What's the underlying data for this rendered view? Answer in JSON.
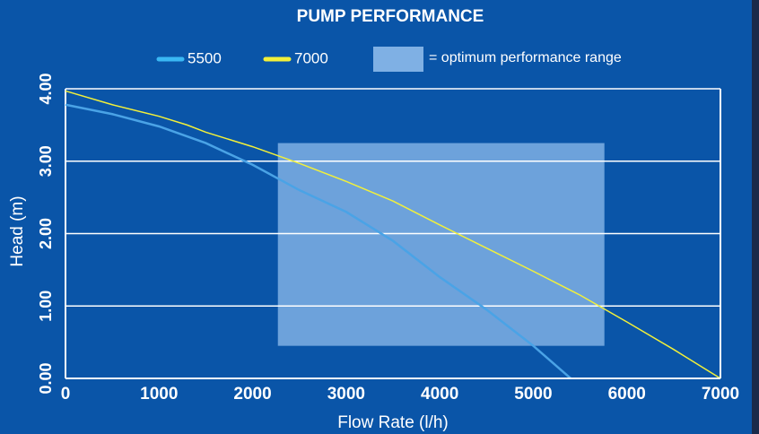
{
  "chart_data": {
    "type": "line",
    "title": "PUMP PERFORMANCE",
    "x_label": "Flow Rate (l/h)",
    "y_label": "Head (m)",
    "xlim": [
      0,
      7000
    ],
    "ylim": [
      0,
      4
    ],
    "xticks": [
      0,
      1000,
      2000,
      3000,
      4000,
      5000,
      6000,
      7000
    ],
    "yticks": [
      {
        "value": 0,
        "label": "0.00"
      },
      {
        "value": 1,
        "label": "1.00"
      },
      {
        "value": 2,
        "label": "2.00"
      },
      {
        "value": 3,
        "label": "3.00"
      },
      {
        "value": 4,
        "label": "4.00"
      }
    ],
    "grid": true,
    "series": [
      {
        "name": "5500",
        "color": "#4aa3e6",
        "legend_color": "#3ab8f4",
        "x": [
          0,
          500,
          1000,
          1500,
          2000,
          2500,
          3000,
          3500,
          4000,
          4500,
          5000,
          5400
        ],
        "values": [
          3.78,
          3.65,
          3.48,
          3.25,
          2.95,
          2.6,
          2.3,
          1.9,
          1.4,
          0.95,
          0.45,
          0
        ]
      },
      {
        "name": "7000",
        "color": "#f2f03a",
        "legend_color": "#f2f03a",
        "x": [
          0,
          500,
          1000,
          1300,
          1500,
          2000,
          2500,
          3000,
          3500,
          4000,
          4500,
          5000,
          5500,
          6000,
          6500,
          7000
        ],
        "values": [
          3.97,
          3.78,
          3.62,
          3.5,
          3.4,
          3.2,
          2.97,
          2.72,
          2.45,
          2.12,
          1.8,
          1.48,
          1.15,
          0.78,
          0.4,
          0
        ]
      }
    ],
    "optimum_range": {
      "label": "= optimum performance range",
      "color": "#7fb0e4",
      "x": [
        2270,
        5760
      ],
      "y": [
        0.45,
        3.25
      ]
    }
  }
}
